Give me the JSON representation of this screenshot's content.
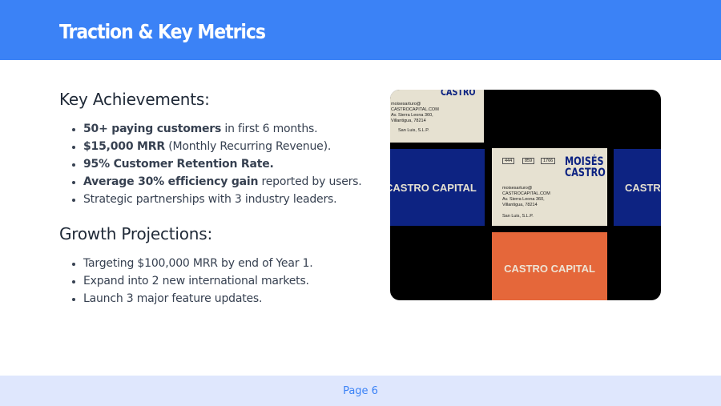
{
  "header": {
    "title": "Traction & Key Metrics"
  },
  "achievements": {
    "heading": "Key Achievements:",
    "items": [
      {
        "bold": "50+ paying customers",
        "rest": " in first 6 months."
      },
      {
        "bold": "$15,000 MRR",
        "rest": " (Monthly Recurring Revenue)."
      },
      {
        "bold": "95% Customer Retention Rate.",
        "rest": ""
      },
      {
        "bold": "Average 30% efficiency gain",
        "rest": " reported by users."
      },
      {
        "bold": "",
        "rest": "Strategic partnerships with 3 industry leaders."
      }
    ]
  },
  "projections": {
    "heading": "Growth Projections:",
    "items": [
      "Targeting $100,000 MRR by end of Year 1.",
      "Expand into 2 new international markets.",
      "Launch 3 major feature updates."
    ]
  },
  "image": {
    "brand": "CASTRO CAPITAL",
    "name_line1": "MOISÉS",
    "name_line2": "CASTRO",
    "partial_name": "CASTRO",
    "phone": [
      "444",
      "859",
      "1766"
    ],
    "email1": "moisesarturo@",
    "email2": "CASTROCAPITAL.COM",
    "addr1": "Av. Sierra Leona 360,",
    "addr2": "Villantigua, 78214",
    "city": "San Luis, S.L.P.",
    "colors": {
      "navy": "#0d2382",
      "cream": "#e6e1d1",
      "orange": "#e5673a"
    }
  },
  "footer": {
    "page": "Page 6"
  },
  "colors": {
    "accent": "#3b82f6",
    "footer_bg": "#dfe7fd"
  }
}
